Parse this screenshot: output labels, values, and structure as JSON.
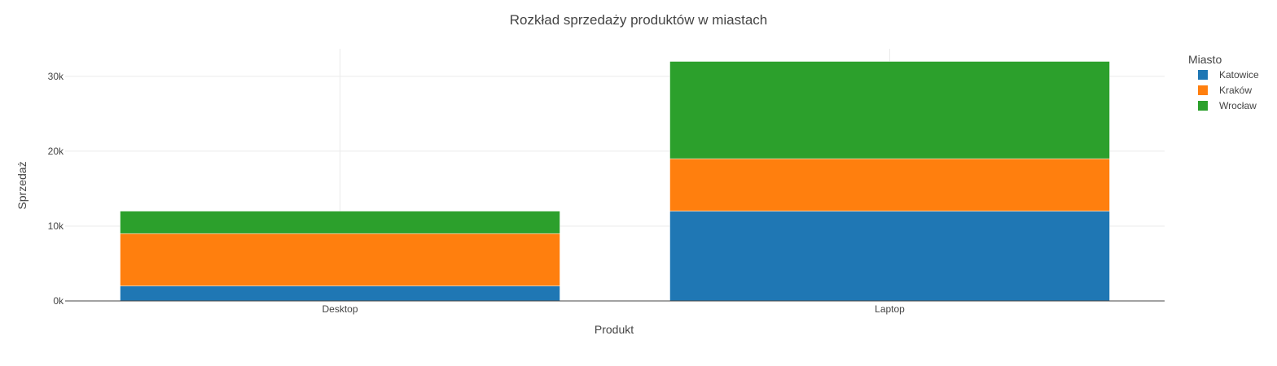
{
  "chart_data": {
    "type": "bar",
    "barmode": "stack",
    "title": "Rozkład sprzedaży produktów w miastach",
    "xlabel": "Produkt",
    "ylabel": "Sprzedaż",
    "categories": [
      "Desktop",
      "Laptop"
    ],
    "series": [
      {
        "name": "Katowice",
        "values": [
          2000,
          12000
        ],
        "color": "#1f77b4"
      },
      {
        "name": "Kraków",
        "values": [
          7000,
          7000
        ],
        "color": "#ff7f0e"
      },
      {
        "name": "Wrocław",
        "values": [
          3000,
          13000
        ],
        "color": "#2ca02c"
      }
    ],
    "ylim": [
      0,
      33684
    ],
    "yticks": [
      0,
      10000,
      20000,
      30000
    ],
    "ytick_labels": [
      "0k",
      "10k",
      "20k",
      "30k"
    ],
    "grid": true,
    "legend": {
      "title": "Miasto",
      "placement": "right"
    }
  }
}
